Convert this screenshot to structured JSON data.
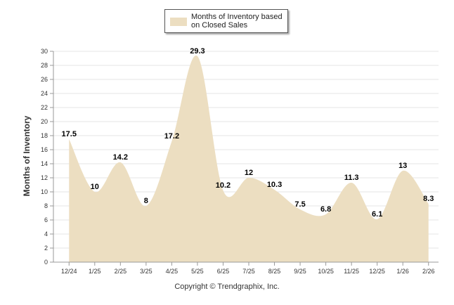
{
  "chart_data": {
    "type": "area",
    "categories": [
      "12/24",
      "1/25",
      "2/25",
      "3/25",
      "4/25",
      "5/25",
      "6/25",
      "7/25",
      "8/25",
      "9/25",
      "10/25",
      "11/25",
      "12/25",
      "1/26",
      "2/26"
    ],
    "series": [
      {
        "name": "Months of Inventory based on Closed Sales",
        "values": [
          17.5,
          10,
          14.2,
          8,
          17.2,
          29.3,
          10.2,
          12,
          10.3,
          7.5,
          6.8,
          11.3,
          6.1,
          13,
          8.3
        ]
      }
    ],
    "data_labels": [
      "17.5",
      "10",
      "14.2",
      "8",
      "17.2",
      "29.3",
      "10.2",
      "12",
      "10.3",
      "7.5",
      "6.8",
      "11.3",
      "6.1",
      "13",
      "8.3"
    ],
    "ylabel": "Months of Inventory",
    "ylim": [
      0,
      30
    ],
    "yticks": [
      "0",
      "2",
      "4",
      "6",
      "8",
      "10",
      "12",
      "14",
      "16",
      "18",
      "20",
      "22",
      "24",
      "26",
      "28",
      "30"
    ],
    "fill_color": "#ecdec1",
    "legend": {
      "label": "Months of Inventory based on Closed Sales",
      "position": "top-center"
    }
  },
  "footer": {
    "copyright": "Copyright © Trendgraphix, Inc."
  }
}
